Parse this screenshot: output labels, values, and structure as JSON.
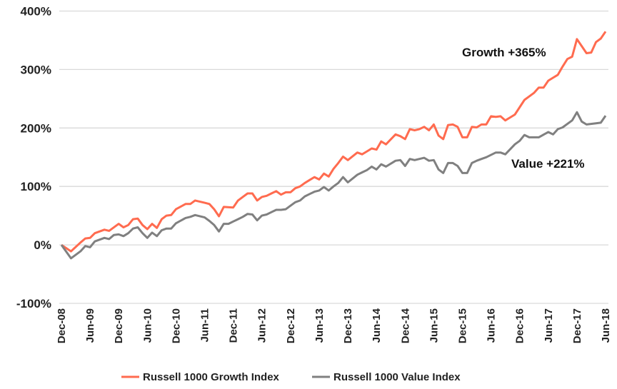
{
  "chart_data": {
    "type": "line",
    "title": "",
    "xlabel": "",
    "ylabel": "",
    "ylim": [
      -100,
      400
    ],
    "y_ticks": [
      "-100%",
      "0%",
      "100%",
      "200%",
      "300%",
      "400%"
    ],
    "y_tick_values": [
      -100,
      0,
      100,
      200,
      300,
      400
    ],
    "x_range": [
      "2008-12",
      "2018-06"
    ],
    "x_tick_labels": [
      "Dec-08",
      "Jun-09",
      "Dec-09",
      "Jun-10",
      "Dec-10",
      "Jun-11",
      "Dec-11",
      "Jun-12",
      "Dec-12",
      "Jun-13",
      "Dec-13",
      "Jun-14",
      "Dec-14",
      "Jun-15",
      "Dec-15",
      "Jun-16",
      "Dec-16",
      "Jun-17",
      "Dec-17",
      "Jun-18"
    ],
    "grid": "horizontal",
    "legend_position": "bottom",
    "series": [
      {
        "name": "Russell 1000 Growth Index",
        "color": "#ff6b4f",
        "points": [
          [
            "2008-12",
            0
          ],
          [
            "2009-02",
            -11
          ],
          [
            "2009-04",
            4
          ],
          [
            "2009-05",
            11
          ],
          [
            "2009-06",
            12
          ],
          [
            "2009-07",
            20
          ],
          [
            "2009-09",
            26
          ],
          [
            "2009-10",
            24
          ],
          [
            "2009-12",
            36
          ],
          [
            "2010-01",
            30
          ],
          [
            "2010-02",
            34
          ],
          [
            "2010-03",
            44
          ],
          [
            "2010-04",
            45
          ],
          [
            "2010-05",
            34
          ],
          [
            "2010-06",
            27
          ],
          [
            "2010-07",
            36
          ],
          [
            "2010-08",
            29
          ],
          [
            "2010-09",
            44
          ],
          [
            "2010-10",
            50
          ],
          [
            "2010-11",
            51
          ],
          [
            "2010-12",
            61
          ],
          [
            "2011-02",
            70
          ],
          [
            "2011-03",
            70
          ],
          [
            "2011-04",
            76
          ],
          [
            "2011-06",
            72
          ],
          [
            "2011-07",
            70
          ],
          [
            "2011-08",
            61
          ],
          [
            "2011-09",
            49
          ],
          [
            "2011-10",
            65
          ],
          [
            "2011-12",
            64
          ],
          [
            "2012-01",
            76
          ],
          [
            "2012-02",
            82
          ],
          [
            "2012-03",
            88
          ],
          [
            "2012-04",
            88
          ],
          [
            "2012-05",
            76
          ],
          [
            "2012-06",
            82
          ],
          [
            "2012-07",
            84
          ],
          [
            "2012-08",
            88
          ],
          [
            "2012-09",
            92
          ],
          [
            "2012-10",
            86
          ],
          [
            "2012-11",
            90
          ],
          [
            "2012-12",
            90
          ],
          [
            "2013-01",
            97
          ],
          [
            "2013-02",
            100
          ],
          [
            "2013-03",
            106
          ],
          [
            "2013-04",
            111
          ],
          [
            "2013-05",
            116
          ],
          [
            "2013-06",
            112
          ],
          [
            "2013-07",
            122
          ],
          [
            "2013-08",
            117
          ],
          [
            "2013-09",
            130
          ],
          [
            "2013-10",
            140
          ],
          [
            "2013-11",
            151
          ],
          [
            "2013-12",
            145
          ],
          [
            "2014-02",
            158
          ],
          [
            "2014-03",
            155
          ],
          [
            "2014-04",
            160
          ],
          [
            "2014-05",
            165
          ],
          [
            "2014-06",
            163
          ],
          [
            "2014-07",
            177
          ],
          [
            "2014-08",
            172
          ],
          [
            "2014-10",
            189
          ],
          [
            "2014-11",
            186
          ],
          [
            "2014-12",
            181
          ],
          [
            "2015-01",
            198
          ],
          [
            "2015-02",
            196
          ],
          [
            "2015-03",
            198
          ],
          [
            "2015-04",
            202
          ],
          [
            "2015-05",
            196
          ],
          [
            "2015-06",
            206
          ],
          [
            "2015-07",
            187
          ],
          [
            "2015-08",
            181
          ],
          [
            "2015-09",
            205
          ],
          [
            "2015-10",
            206
          ],
          [
            "2015-11",
            202
          ],
          [
            "2015-12",
            184
          ],
          [
            "2016-01",
            184
          ],
          [
            "2016-02",
            202
          ],
          [
            "2016-03",
            201
          ],
          [
            "2016-04",
            206
          ],
          [
            "2016-05",
            206
          ],
          [
            "2016-06",
            220
          ],
          [
            "2016-07",
            219
          ],
          [
            "2016-08",
            220
          ],
          [
            "2016-09",
            213
          ],
          [
            "2016-10",
            218
          ],
          [
            "2016-11",
            223
          ],
          [
            "2017-01",
            248
          ],
          [
            "2017-02",
            254
          ],
          [
            "2017-03",
            260
          ],
          [
            "2017-04",
            269
          ],
          [
            "2017-05",
            269
          ],
          [
            "2017-06",
            281
          ],
          [
            "2017-07",
            286
          ],
          [
            "2017-08",
            291
          ],
          [
            "2017-09",
            305
          ],
          [
            "2017-10",
            318
          ],
          [
            "2017-11",
            322
          ],
          [
            "2017-12",
            352
          ],
          [
            "2018-01",
            340
          ],
          [
            "2018-02",
            328
          ],
          [
            "2018-03",
            329
          ],
          [
            "2018-04",
            347
          ],
          [
            "2018-05",
            353
          ],
          [
            "2018-06",
            365
          ]
        ]
      },
      {
        "name": "Russell 1000 Value Index",
        "color": "#808080",
        "points": [
          [
            "2008-12",
            0
          ],
          [
            "2009-02",
            -23
          ],
          [
            "2009-04",
            -11
          ],
          [
            "2009-05",
            -2
          ],
          [
            "2009-06",
            -4
          ],
          [
            "2009-07",
            6
          ],
          [
            "2009-09",
            12
          ],
          [
            "2009-10",
            10
          ],
          [
            "2009-11",
            17
          ],
          [
            "2009-12",
            18
          ],
          [
            "2010-01",
            15
          ],
          [
            "2010-02",
            20
          ],
          [
            "2010-03",
            28
          ],
          [
            "2010-04",
            30
          ],
          [
            "2010-05",
            20
          ],
          [
            "2010-06",
            12
          ],
          [
            "2010-07",
            21
          ],
          [
            "2010-08",
            15
          ],
          [
            "2010-09",
            25
          ],
          [
            "2010-10",
            28
          ],
          [
            "2010-11",
            28
          ],
          [
            "2010-12",
            37
          ],
          [
            "2011-02",
            46
          ],
          [
            "2011-03",
            48
          ],
          [
            "2011-04",
            51
          ],
          [
            "2011-06",
            47
          ],
          [
            "2011-07",
            41
          ],
          [
            "2011-08",
            34
          ],
          [
            "2011-09",
            23
          ],
          [
            "2011-10",
            36
          ],
          [
            "2011-11",
            36
          ],
          [
            "2011-12",
            40
          ],
          [
            "2012-01",
            44
          ],
          [
            "2012-02",
            48
          ],
          [
            "2012-03",
            53
          ],
          [
            "2012-04",
            52
          ],
          [
            "2012-05",
            42
          ],
          [
            "2012-06",
            50
          ],
          [
            "2012-07",
            52
          ],
          [
            "2012-08",
            56
          ],
          [
            "2012-09",
            60
          ],
          [
            "2012-10",
            60
          ],
          [
            "2012-11",
            61
          ],
          [
            "2012-12",
            67
          ],
          [
            "2013-01",
            73
          ],
          [
            "2013-02",
            76
          ],
          [
            "2013-03",
            83
          ],
          [
            "2013-04",
            87
          ],
          [
            "2013-05",
            91
          ],
          [
            "2013-06",
            93
          ],
          [
            "2013-07",
            99
          ],
          [
            "2013-08",
            93
          ],
          [
            "2013-09",
            100
          ],
          [
            "2013-10",
            106
          ],
          [
            "2013-11",
            116
          ],
          [
            "2013-12",
            107
          ],
          [
            "2014-02",
            120
          ],
          [
            "2014-03",
            124
          ],
          [
            "2014-04",
            128
          ],
          [
            "2014-05",
            134
          ],
          [
            "2014-06",
            129
          ],
          [
            "2014-07",
            138
          ],
          [
            "2014-08",
            134
          ],
          [
            "2014-10",
            144
          ],
          [
            "2014-11",
            145
          ],
          [
            "2014-12",
            135
          ],
          [
            "2015-01",
            147
          ],
          [
            "2015-02",
            145
          ],
          [
            "2015-04",
            149
          ],
          [
            "2015-05",
            144
          ],
          [
            "2015-06",
            145
          ],
          [
            "2015-07",
            129
          ],
          [
            "2015-08",
            123
          ],
          [
            "2015-09",
            140
          ],
          [
            "2015-10",
            140
          ],
          [
            "2015-11",
            135
          ],
          [
            "2015-12",
            123
          ],
          [
            "2016-01",
            123
          ],
          [
            "2016-02",
            140
          ],
          [
            "2016-03",
            144
          ],
          [
            "2016-04",
            147
          ],
          [
            "2016-05",
            150
          ],
          [
            "2016-07",
            158
          ],
          [
            "2016-08",
            158
          ],
          [
            "2016-09",
            155
          ],
          [
            "2016-11",
            172
          ],
          [
            "2016-12",
            178
          ],
          [
            "2017-01",
            188
          ],
          [
            "2017-02",
            184
          ],
          [
            "2017-04",
            184
          ],
          [
            "2017-06",
            193
          ],
          [
            "2017-07",
            189
          ],
          [
            "2017-08",
            198
          ],
          [
            "2017-09",
            201
          ],
          [
            "2017-11",
            213
          ],
          [
            "2017-12",
            227
          ],
          [
            "2018-01",
            211
          ],
          [
            "2018-02",
            206
          ],
          [
            "2018-04",
            208
          ],
          [
            "2018-05",
            209
          ],
          [
            "2018-06",
            221
          ]
        ]
      }
    ],
    "annotations": [
      {
        "text": "Growth +365%",
        "series": "Russell 1000 Growth Index"
      },
      {
        "text": "Value +221%",
        "series": "Russell 1000 Value Index"
      }
    ]
  }
}
